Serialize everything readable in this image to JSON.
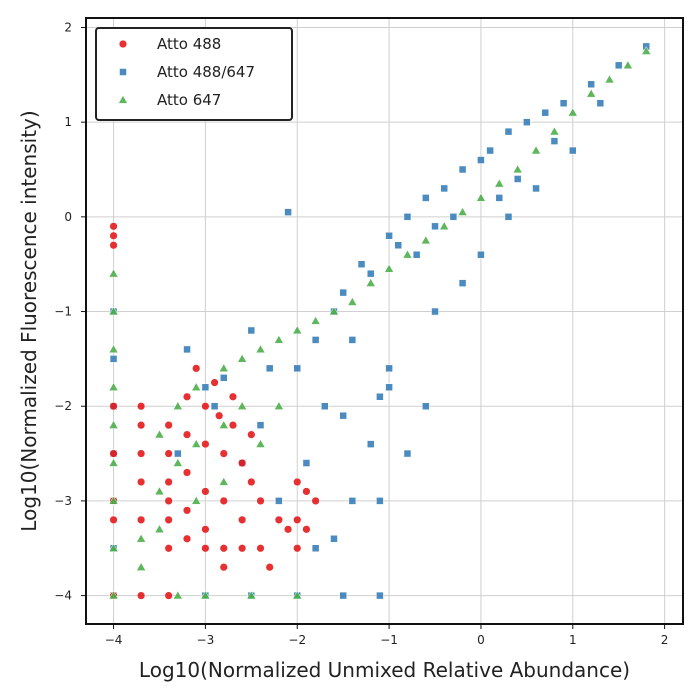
{
  "chart_data": {
    "type": "scatter",
    "xlabel": "Log10(Normalized Unmixed Relative Abundance)",
    "ylabel": "Log10(Normalized Fluorescence intensity)",
    "xlim": [
      -4.3,
      2.2
    ],
    "ylim": [
      -4.3,
      2.1
    ],
    "x_ticks": [
      -4,
      -3,
      -2,
      -1,
      0,
      1,
      2
    ],
    "y_ticks": [
      -4,
      -3,
      -2,
      -1,
      0,
      1,
      2
    ],
    "x_tick_labels": [
      "−4",
      "−3",
      "−2",
      "−1",
      "0",
      "1",
      "2"
    ],
    "y_tick_labels": [
      "−4",
      "−3",
      "−2",
      "−1",
      "0",
      "1",
      "2"
    ],
    "grid": true,
    "legend_position": "top-left",
    "legend": [
      {
        "name": "Atto 488",
        "color": "#e41a1c",
        "marker": "circle"
      },
      {
        "name": "Atto 488/647",
        "color": "#377eb8",
        "marker": "square"
      },
      {
        "name": "Atto 647",
        "color": "#4daf4a",
        "marker": "triangle"
      }
    ],
    "series": [
      {
        "name": "Atto 488",
        "color": "#e41a1c",
        "marker": "circle",
        "points": [
          [
            -4.0,
            -0.1
          ],
          [
            -4.0,
            -0.2
          ],
          [
            -4.0,
            -0.3
          ],
          [
            -4.0,
            -2.0
          ],
          [
            -4.0,
            -2.5
          ],
          [
            -4.0,
            -3.0
          ],
          [
            -4.0,
            -3.2
          ],
          [
            -4.0,
            -4.0
          ],
          [
            -3.7,
            -2.0
          ],
          [
            -3.7,
            -2.2
          ],
          [
            -3.7,
            -2.5
          ],
          [
            -3.7,
            -2.8
          ],
          [
            -3.7,
            -3.2
          ],
          [
            -3.7,
            -4.0
          ],
          [
            -3.4,
            -2.2
          ],
          [
            -3.4,
            -2.5
          ],
          [
            -3.4,
            -2.8
          ],
          [
            -3.4,
            -3.0
          ],
          [
            -3.4,
            -3.2
          ],
          [
            -3.4,
            -3.5
          ],
          [
            -3.4,
            -4.0
          ],
          [
            -3.2,
            -1.9
          ],
          [
            -3.2,
            -2.3
          ],
          [
            -3.2,
            -2.7
          ],
          [
            -3.2,
            -3.1
          ],
          [
            -3.2,
            -3.4
          ],
          [
            -3.1,
            -1.6
          ],
          [
            -3.0,
            -2.0
          ],
          [
            -3.0,
            -2.4
          ],
          [
            -3.0,
            -2.9
          ],
          [
            -3.0,
            -3.3
          ],
          [
            -3.0,
            -3.5
          ],
          [
            -2.9,
            -1.75
          ],
          [
            -2.85,
            -2.1
          ],
          [
            -2.8,
            -2.5
          ],
          [
            -2.8,
            -3.0
          ],
          [
            -2.8,
            -3.5
          ],
          [
            -2.8,
            -3.7
          ],
          [
            -2.7,
            -1.9
          ],
          [
            -2.7,
            -2.2
          ],
          [
            -2.6,
            -2.6
          ],
          [
            -2.6,
            -3.2
          ],
          [
            -2.6,
            -3.5
          ],
          [
            -2.5,
            -2.3
          ],
          [
            -2.5,
            -2.8
          ],
          [
            -2.4,
            -3.0
          ],
          [
            -2.4,
            -3.5
          ],
          [
            -2.3,
            -3.7
          ],
          [
            -2.2,
            -3.2
          ],
          [
            -2.1,
            -3.3
          ],
          [
            -2.0,
            -2.8
          ],
          [
            -2.0,
            -3.2
          ],
          [
            -2.0,
            -3.5
          ],
          [
            -1.9,
            -2.9
          ],
          [
            -1.8,
            -3.0
          ],
          [
            -1.9,
            -3.3
          ]
        ]
      },
      {
        "name": "Atto 488/647",
        "color": "#377eb8",
        "marker": "square",
        "points": [
          [
            -4.0,
            -4.0
          ],
          [
            -3.0,
            -4.0
          ],
          [
            -2.5,
            -4.0
          ],
          [
            -2.0,
            -4.0
          ],
          [
            -1.5,
            -4.0
          ],
          [
            -1.1,
            -4.0
          ],
          [
            -2.3,
            -1.6
          ],
          [
            -2.5,
            -1.2
          ],
          [
            -2.8,
            -1.7
          ],
          [
            -3.0,
            -1.8
          ],
          [
            -2.0,
            -1.6
          ],
          [
            -1.8,
            -1.3
          ],
          [
            -1.6,
            -1.0
          ],
          [
            -1.5,
            -0.8
          ],
          [
            -1.3,
            -0.5
          ],
          [
            -1.2,
            -0.6
          ],
          [
            -1.0,
            -0.2
          ],
          [
            -0.9,
            -0.3
          ],
          [
            -0.8,
            0.0
          ],
          [
            -0.6,
            0.2
          ],
          [
            -0.5,
            -0.1
          ],
          [
            -0.4,
            0.3
          ],
          [
            -0.2,
            0.5
          ],
          [
            0.0,
            0.6
          ],
          [
            0.1,
            0.7
          ],
          [
            0.3,
            0.9
          ],
          [
            0.5,
            1.0
          ],
          [
            0.7,
            1.1
          ],
          [
            0.9,
            1.2
          ],
          [
            1.2,
            1.4
          ],
          [
            1.5,
            1.6
          ],
          [
            1.8,
            1.8
          ],
          [
            -0.2,
            -0.7
          ],
          [
            0.0,
            -0.4
          ],
          [
            0.3,
            0.0
          ],
          [
            0.6,
            0.3
          ],
          [
            -0.5,
            -1.0
          ],
          [
            -1.0,
            -1.6
          ],
          [
            -1.1,
            -1.9
          ],
          [
            -1.5,
            -2.1
          ],
          [
            -1.2,
            -2.4
          ],
          [
            -1.0,
            -1.8
          ],
          [
            -2.1,
            0.05
          ],
          [
            -3.2,
            -1.4
          ],
          [
            -2.9,
            -2.0
          ],
          [
            -2.6,
            -2.6
          ],
          [
            -2.2,
            -3.0
          ],
          [
            -1.8,
            -3.5
          ],
          [
            -1.6,
            -3.4
          ],
          [
            -1.9,
            -2.6
          ],
          [
            -1.4,
            -3.0
          ],
          [
            -1.1,
            -3.0
          ],
          [
            -0.8,
            -2.5
          ],
          [
            -0.6,
            -2.0
          ],
          [
            0.4,
            0.4
          ],
          [
            0.8,
            0.8
          ],
          [
            1.0,
            0.7
          ],
          [
            1.3,
            1.2
          ],
          [
            0.2,
            0.2
          ],
          [
            -0.3,
            0.0
          ],
          [
            -0.7,
            -0.4
          ],
          [
            -1.4,
            -1.3
          ],
          [
            -1.7,
            -2.0
          ],
          [
            -2.4,
            -2.2
          ],
          [
            -3.3,
            -2.5
          ],
          [
            -4.0,
            -3.5
          ],
          [
            -4.0,
            -3.0
          ],
          [
            -4.0,
            -2.5
          ],
          [
            -4.0,
            -2.0
          ],
          [
            -4.0,
            -1.5
          ],
          [
            -4.0,
            -1.0
          ]
        ]
      },
      {
        "name": "Atto 647",
        "color": "#4daf4a",
        "marker": "triangle",
        "points": [
          [
            -4.0,
            -0.6
          ],
          [
            -4.0,
            -1.0
          ],
          [
            -4.0,
            -1.4
          ],
          [
            -4.0,
            -1.8
          ],
          [
            -4.0,
            -2.2
          ],
          [
            -4.0,
            -2.6
          ],
          [
            -4.0,
            -3.0
          ],
          [
            -4.0,
            -3.5
          ],
          [
            -4.0,
            -4.0
          ],
          [
            -3.7,
            -3.4
          ],
          [
            -3.7,
            -3.7
          ],
          [
            -3.5,
            -2.3
          ],
          [
            -3.5,
            -2.9
          ],
          [
            -3.5,
            -3.3
          ],
          [
            -3.3,
            -2.0
          ],
          [
            -3.3,
            -2.6
          ],
          [
            -3.3,
            -4.0
          ],
          [
            -3.1,
            -1.8
          ],
          [
            -3.1,
            -2.4
          ],
          [
            -3.1,
            -3.0
          ],
          [
            -3.0,
            -4.0
          ],
          [
            -2.8,
            -1.6
          ],
          [
            -2.8,
            -2.2
          ],
          [
            -2.8,
            -2.8
          ],
          [
            -2.6,
            -1.5
          ],
          [
            -2.6,
            -2.0
          ],
          [
            -2.5,
            -4.0
          ],
          [
            -2.4,
            -1.4
          ],
          [
            -2.4,
            -2.4
          ],
          [
            -2.2,
            -1.3
          ],
          [
            -2.2,
            -2.0
          ],
          [
            -2.0,
            -1.2
          ],
          [
            -2.0,
            -4.0
          ],
          [
            -1.8,
            -1.1
          ],
          [
            -1.6,
            -1.0
          ],
          [
            -1.4,
            -0.9
          ],
          [
            -1.2,
            -0.7
          ],
          [
            -1.0,
            -0.55
          ],
          [
            -0.8,
            -0.4
          ],
          [
            -0.6,
            -0.25
          ],
          [
            -0.4,
            -0.1
          ],
          [
            -0.2,
            0.05
          ],
          [
            0.0,
            0.2
          ],
          [
            0.2,
            0.35
          ],
          [
            0.4,
            0.5
          ],
          [
            0.6,
            0.7
          ],
          [
            0.8,
            0.9
          ],
          [
            1.0,
            1.1
          ],
          [
            1.2,
            1.3
          ],
          [
            1.4,
            1.45
          ],
          [
            1.6,
            1.6
          ],
          [
            1.8,
            1.75
          ]
        ]
      }
    ]
  }
}
